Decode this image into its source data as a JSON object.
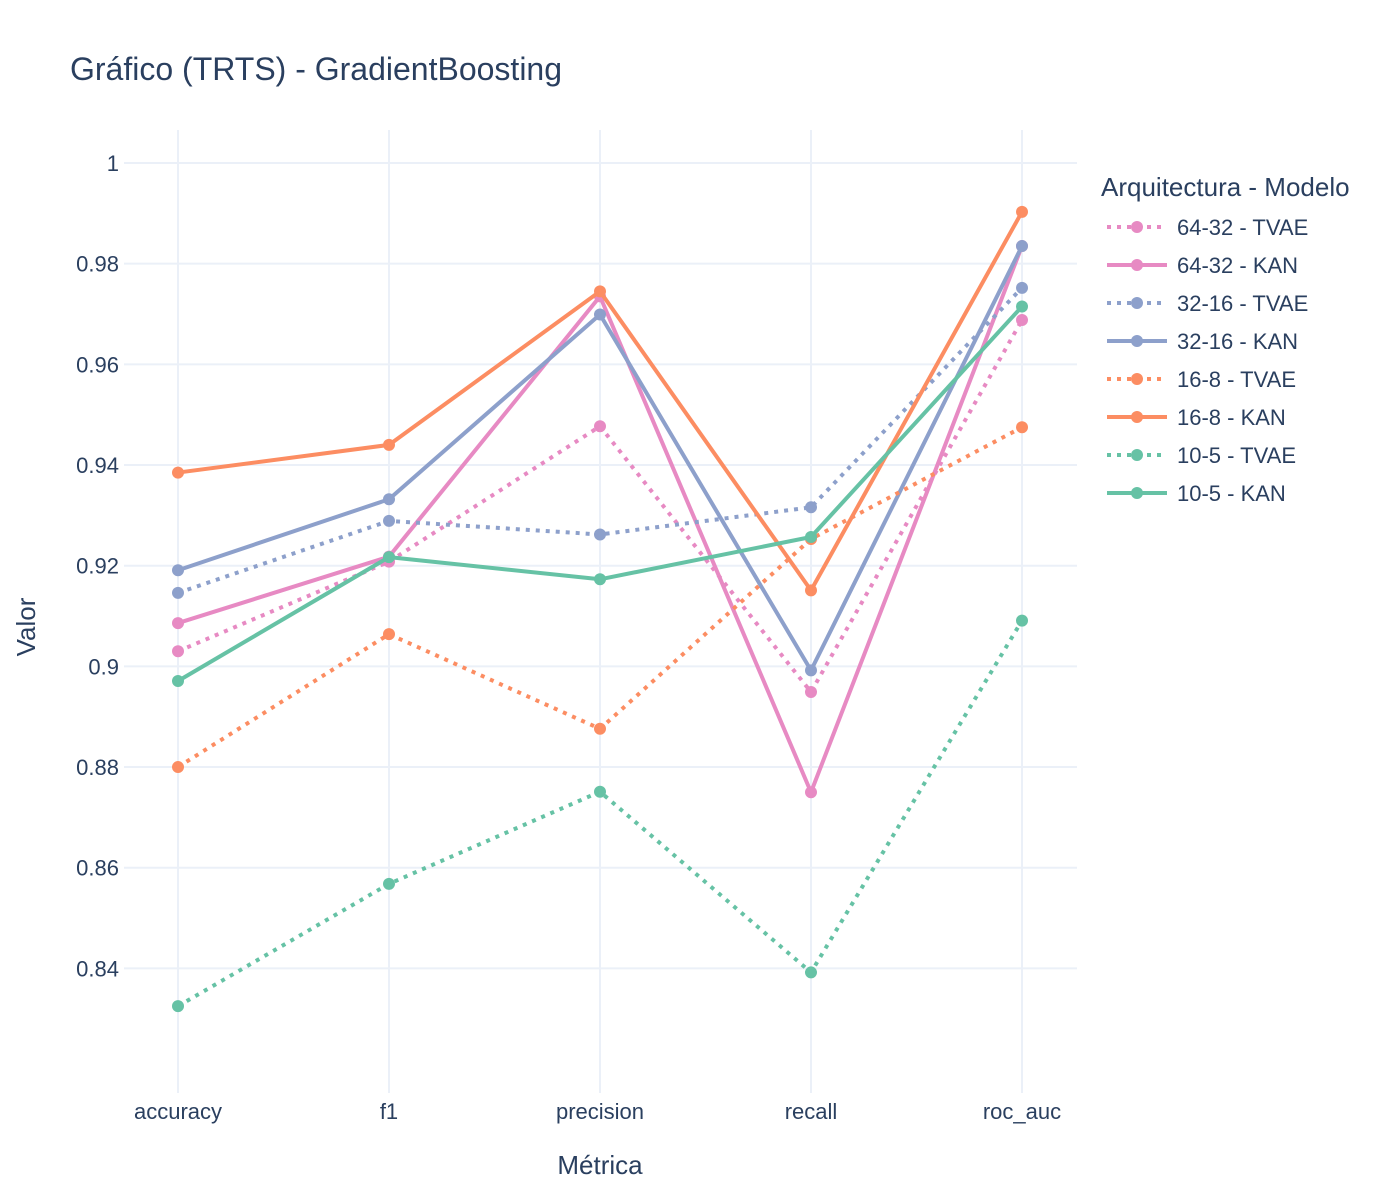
{
  "chart_data": {
    "type": "line",
    "title": "Gráfico (TRTS) - GradientBoosting",
    "xlabel": "Métrica",
    "ylabel": "Valor",
    "categories": [
      "accuracy",
      "f1",
      "precision",
      "recall",
      "roc_auc"
    ],
    "ylim": [
      0.8225,
      1.0
    ],
    "yticks": [
      0.84,
      0.86,
      0.88,
      0.9,
      0.92,
      0.94,
      0.96,
      0.98,
      1
    ],
    "ytick_labels": [
      "0.84",
      "0.86",
      "0.88",
      "0.9",
      "0.92",
      "0.94",
      "0.96",
      "0.98",
      "1"
    ],
    "grid": true,
    "legend": {
      "title": "Arquitectura - Modelo",
      "placement": "right"
    },
    "series": [
      {
        "name": "64-32 - TVAE",
        "color": "#e78ac3",
        "dash": "dot",
        "values": [
          0.903,
          0.9208,
          0.9477,
          0.8949,
          0.9688
        ]
      },
      {
        "name": "64-32 - KAN",
        "color": "#e78ac3",
        "dash": "solid",
        "values": [
          0.9086,
          0.9218,
          0.9735,
          0.875,
          0.9835
        ]
      },
      {
        "name": "32-16 - TVAE",
        "color": "#8da0cb",
        "dash": "dot",
        "values": [
          0.9146,
          0.9289,
          0.9262,
          0.9316,
          0.9752
        ]
      },
      {
        "name": "32-16 - KAN",
        "color": "#8da0cb",
        "dash": "solid",
        "values": [
          0.9191,
          0.9332,
          0.9699,
          0.8992,
          0.9835
        ]
      },
      {
        "name": "16-8 - TVAE",
        "color": "#fc8d62",
        "dash": "dot",
        "values": [
          0.88,
          0.9064,
          0.8876,
          0.9253,
          0.9475
        ]
      },
      {
        "name": "16-8 - KAN",
        "color": "#fc8d62",
        "dash": "solid",
        "values": [
          0.9385,
          0.944,
          0.9745,
          0.9151,
          0.9903
        ]
      },
      {
        "name": "10-5 - TVAE",
        "color": "#66c2a5",
        "dash": "dot",
        "values": [
          0.8325,
          0.8568,
          0.8751,
          0.8392,
          0.9091
        ]
      },
      {
        "name": "10-5 - KAN",
        "color": "#66c2a5",
        "dash": "solid",
        "values": [
          0.8971,
          0.9217,
          0.9173,
          0.9257,
          0.9715
        ]
      }
    ]
  }
}
